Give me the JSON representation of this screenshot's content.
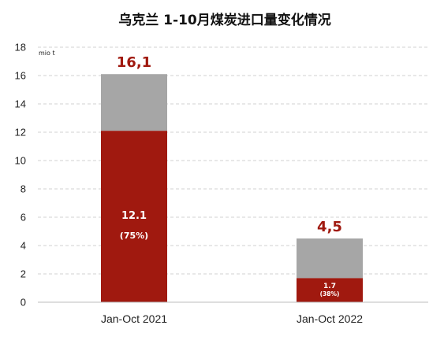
{
  "chart_data": {
    "type": "bar",
    "title": "乌克兰 1-10月煤炭进口量变化情况",
    "unit_label": "mio t",
    "categories": [
      "Jan-Oct 2021",
      "Jan-Oct 2022"
    ],
    "totals": [
      16.1,
      4.5
    ],
    "total_labels": [
      "16,1",
      "4,5"
    ],
    "series": [
      {
        "values": [
          12.1,
          1.7
        ],
        "labels": [
          "12.1",
          "1.7"
        ],
        "share_labels": [
          "(75%)",
          "(38%)"
        ],
        "color": "#a0190f"
      },
      {
        "values": [
          4.0,
          2.8
        ],
        "color": "#a6a6a6"
      }
    ],
    "ylim": [
      0,
      18
    ],
    "yticks": [
      0,
      2,
      4,
      6,
      8,
      10,
      12,
      14,
      16,
      18
    ],
    "grid": true,
    "grid_style": "dashed",
    "total_label_color": "#a0190f"
  }
}
